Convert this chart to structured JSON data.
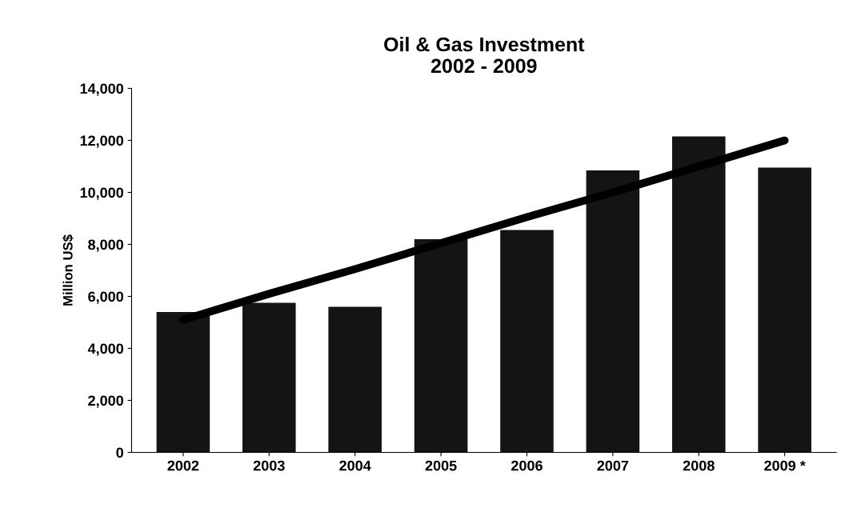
{
  "chart_data": {
    "type": "bar",
    "title": "Oil & Gas Investment\n2002 - 2009",
    "ylabel": "Million US$",
    "categories": [
      "2002",
      "2003",
      "2004",
      "2005",
      "2006",
      "2007",
      "2008",
      "2009 *"
    ],
    "series": [
      {
        "color": "#141414",
        "values": [
          5400,
          5750,
          5600,
          8200,
          8550,
          10850,
          12150,
          10950
        ]
      },
      {
        "type": "line",
        "color": "#000000",
        "values": [
          5100,
          6100,
          7050,
          8050,
          9050,
          10000,
          11000,
          12000
        ]
      }
    ],
    "ylim": [
      0,
      14000
    ],
    "yticks": [
      {
        "value": 0,
        "label": "0"
      },
      {
        "value": 2000,
        "label": "2,000"
      },
      {
        "value": 4000,
        "label": "4,000"
      },
      {
        "value": 6000,
        "label": "6,000"
      },
      {
        "value": 8000,
        "label": "8,000"
      },
      {
        "value": 10000,
        "label": "10,000"
      },
      {
        "value": 12000,
        "label": "12,000"
      },
      {
        "value": 14000,
        "label": "14,000"
      }
    ],
    "grid": false,
    "legend": false,
    "marker": "none",
    "line_style": "solid"
  }
}
